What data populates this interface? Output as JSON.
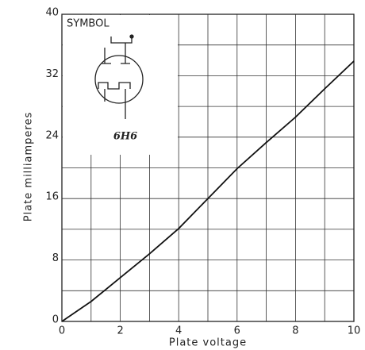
{
  "chart_data": {
    "type": "line",
    "x": [
      0,
      1,
      2,
      3,
      4,
      5,
      6,
      7,
      8,
      9,
      10
    ],
    "values": [
      0,
      2.6,
      5.7,
      8.8,
      12.1,
      16,
      19.9,
      23.3,
      26.6,
      30.3,
      33.9
    ],
    "color": "#111111",
    "xlabel": "Plate voltage",
    "ylabel": "Plate milliamperes",
    "xlim": [
      0,
      10
    ],
    "xticks": [
      0,
      2,
      4,
      6,
      8,
      10
    ],
    "ylim": [
      0,
      40
    ],
    "yticks": [
      0,
      8,
      16,
      24,
      32,
      40
    ],
    "x_minor_grid": [
      1,
      3,
      5,
      7,
      9
    ],
    "y_minor_grid": [
      4,
      12,
      20,
      28,
      36
    ],
    "grid": true,
    "inset": {
      "caption": "SYMBOL",
      "tube": "6H6"
    }
  }
}
